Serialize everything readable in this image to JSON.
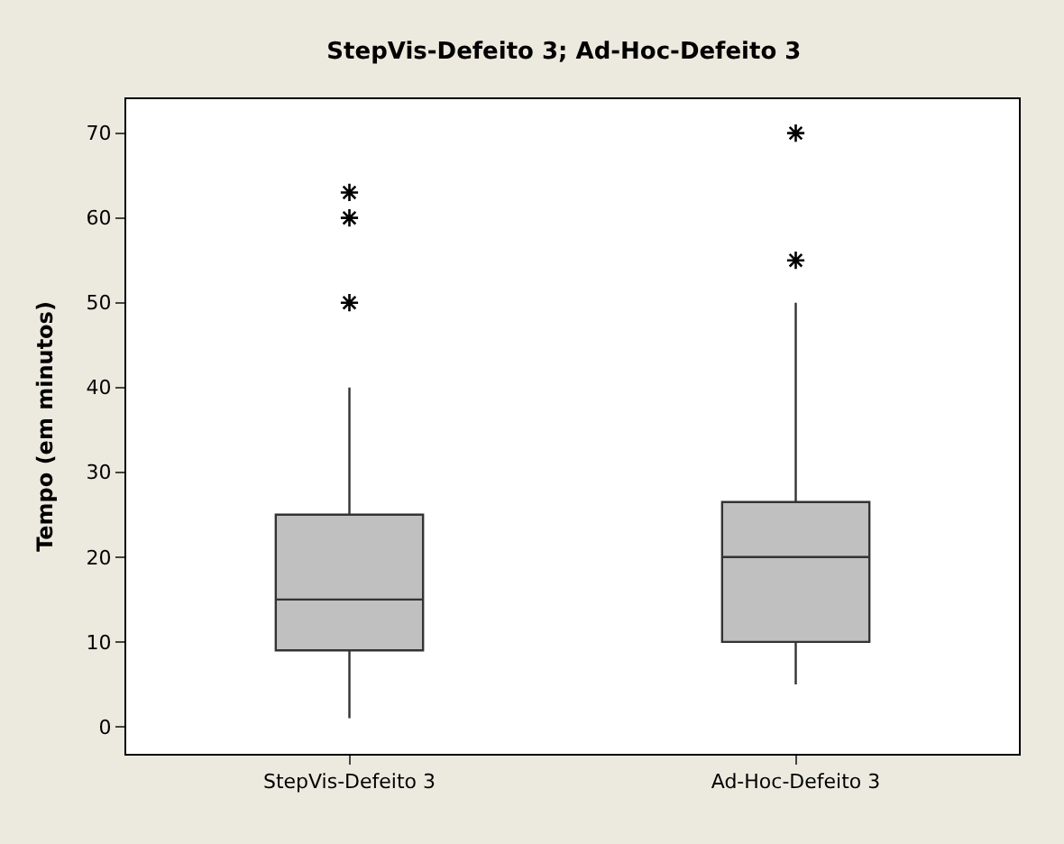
{
  "chart_data": {
    "type": "box",
    "title": "StepVis-Defeito 3; Ad-Hoc-Defeito 3",
    "ylabel": "Tempo (em minutos)",
    "categories": [
      "StepVis-Defeito 3",
      "Ad-Hoc-Defeito 3"
    ],
    "boxes": [
      {
        "low": 1,
        "q1": 9,
        "median": 15,
        "q3": 25,
        "high": 40,
        "outliers": [
          50,
          60,
          63
        ]
      },
      {
        "low": 5,
        "q1": 10,
        "median": 20,
        "q3": 26.5,
        "high": 50,
        "outliers": [
          55,
          70
        ]
      }
    ],
    "color": "#c0c0c0",
    "ylim": [
      -3.2,
      74
    ],
    "yticks": [
      0,
      10,
      20,
      30,
      40,
      50,
      60,
      70
    ]
  }
}
